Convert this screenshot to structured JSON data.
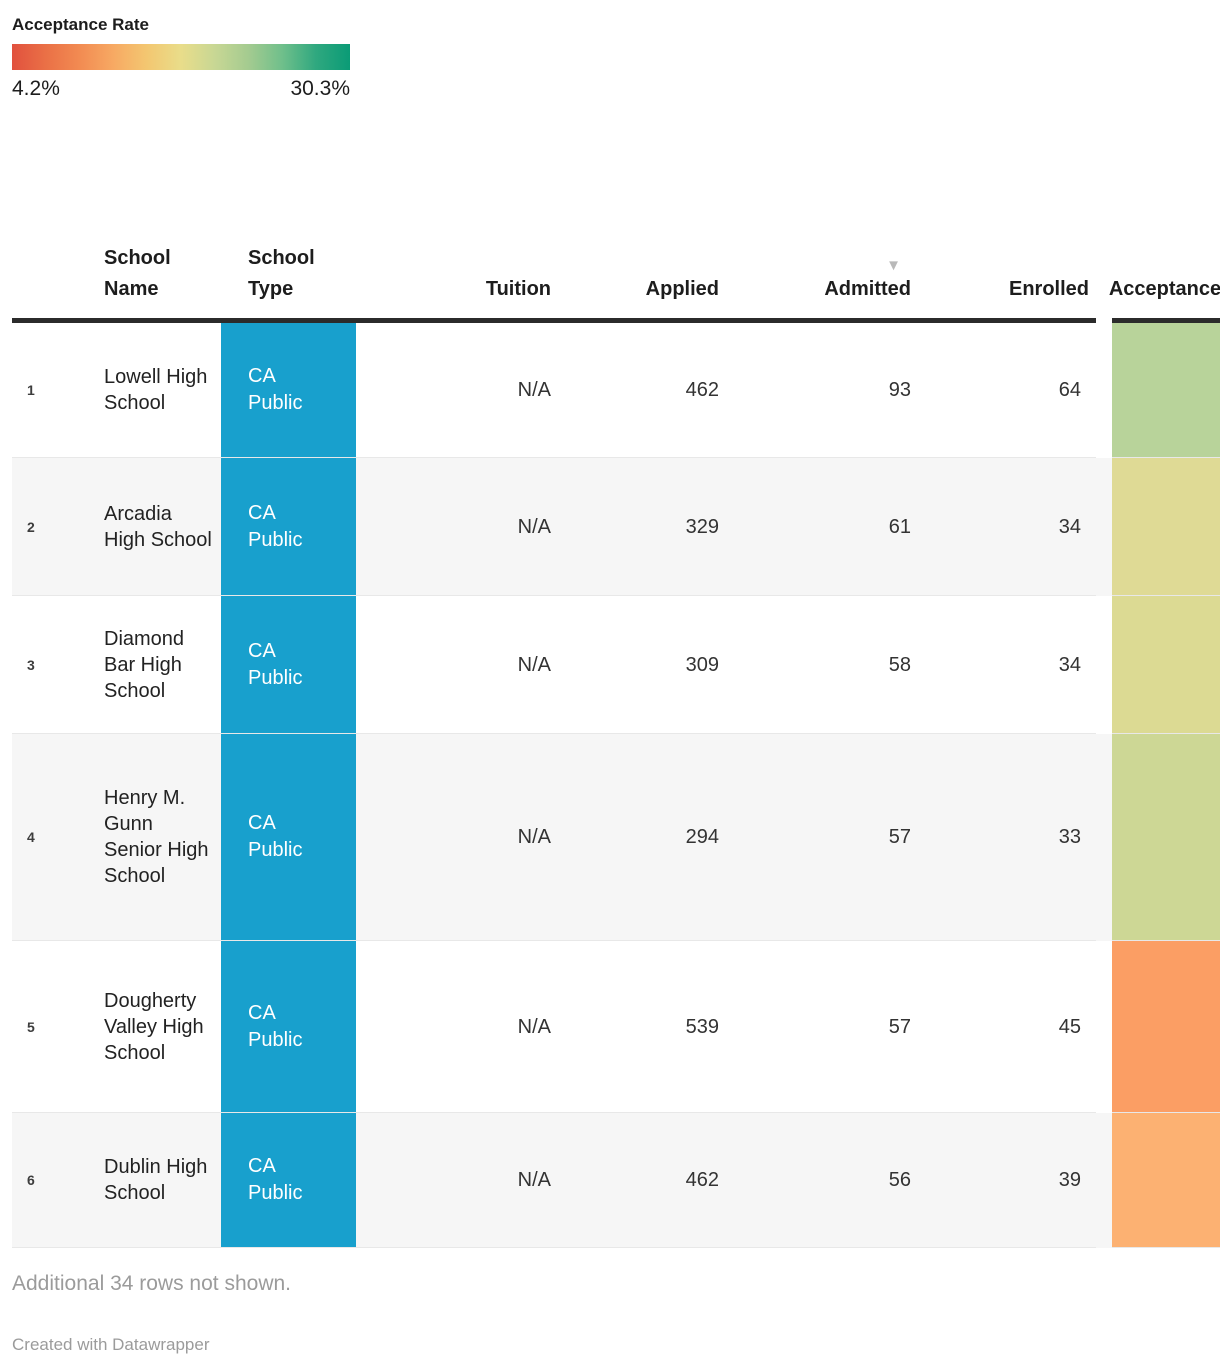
{
  "legend": {
    "title": "Acceptance Rate",
    "min_label": "4.2%",
    "max_label": "30.3%",
    "gradient_colors": [
      "#e1513e",
      "#ea7046",
      "#f28b52",
      "#f7a963",
      "#f3c771",
      "#e9dd8a",
      "#c8d794",
      "#a4cb90",
      "#6fbf8b",
      "#2fa87f",
      "#0a9b76"
    ]
  },
  "table": {
    "columns": {
      "name": "School Name",
      "type": "School Type",
      "tuition": "Tuition",
      "applied": "Applied",
      "admitted": "Admitted",
      "enrolled": "Enrolled",
      "acceptance": "Acceptance Rate"
    },
    "sort_icon": "▼",
    "sorted_column": "Admitted",
    "type_cell_color": "#18a0cd",
    "rows": [
      {
        "num": "1",
        "name": "Lowell High School",
        "type": "CA Public",
        "tuition": "N/A",
        "applied": "462",
        "admitted": "93",
        "enrolled": "64",
        "acceptance_color": "#b8d39a"
      },
      {
        "num": "2",
        "name": "Arcadia High School",
        "type": "CA Public",
        "tuition": "N/A",
        "applied": "329",
        "admitted": "61",
        "enrolled": "34",
        "acceptance_color": "#dfda95"
      },
      {
        "num": "3",
        "name": "Diamond Bar High School",
        "type": "CA Public",
        "tuition": "N/A",
        "applied": "309",
        "admitted": "58",
        "enrolled": "34",
        "acceptance_color": "#dcda93"
      },
      {
        "num": "4",
        "name": "Henry M. Gunn Senior High School",
        "type": "CA Public",
        "tuition": "N/A",
        "applied": "294",
        "admitted": "57",
        "enrolled": "33",
        "acceptance_color": "#cdd795"
      },
      {
        "num": "5",
        "name": "Dougherty Valley High School",
        "type": "CA Public",
        "tuition": "N/A",
        "applied": "539",
        "admitted": "57",
        "enrolled": "45",
        "acceptance_color": "#fb9e64"
      },
      {
        "num": "6",
        "name": "Dublin High School",
        "type": "CA Public",
        "tuition": "N/A",
        "applied": "462",
        "admitted": "56",
        "enrolled": "39",
        "acceptance_color": "#fcb172"
      }
    ]
  },
  "footer": {
    "note": "Additional 34 rows not shown.",
    "credit": "Created with Datawrapper"
  },
  "chart_data": {
    "type": "table",
    "title": "Acceptance Rate",
    "color_scale": {
      "label": "Acceptance Rate",
      "min": 4.2,
      "max": 30.3,
      "unit": "%",
      "scale": "red-yellow-green gradient"
    },
    "columns": [
      "School Name",
      "School Type",
      "Tuition",
      "Applied",
      "Admitted",
      "Enrolled",
      "Acceptance Rate"
    ],
    "sorted_by": {
      "column": "Admitted",
      "direction": "descending"
    },
    "rows": [
      {
        "rank": 1,
        "school_name": "Lowell High School",
        "school_type": "CA Public",
        "tuition": "N/A",
        "applied": 462,
        "admitted": 93,
        "enrolled": 64,
        "acceptance_rate_value_visible": false,
        "acceptance_cell_color": "#b8d39a"
      },
      {
        "rank": 2,
        "school_name": "Arcadia High School",
        "school_type": "CA Public",
        "tuition": "N/A",
        "applied": 329,
        "admitted": 61,
        "enrolled": 34,
        "acceptance_rate_value_visible": false,
        "acceptance_cell_color": "#dfda95"
      },
      {
        "rank": 3,
        "school_name": "Diamond Bar High School",
        "school_type": "CA Public",
        "tuition": "N/A",
        "applied": 309,
        "admitted": 58,
        "enrolled": 34,
        "acceptance_rate_value_visible": false,
        "acceptance_cell_color": "#dcda93"
      },
      {
        "rank": 4,
        "school_name": "Henry M. Gunn Senior High School",
        "school_type": "CA Public",
        "tuition": "N/A",
        "applied": 294,
        "admitted": 57,
        "enrolled": 33,
        "acceptance_rate_value_visible": false,
        "acceptance_cell_color": "#cdd795"
      },
      {
        "rank": 5,
        "school_name": "Dougherty Valley High School",
        "school_type": "CA Public",
        "tuition": "N/A",
        "applied": 539,
        "admitted": 57,
        "enrolled": 45,
        "acceptance_rate_value_visible": false,
        "acceptance_cell_color": "#fb9e64"
      },
      {
        "rank": 6,
        "school_name": "Dublin High School",
        "school_type": "CA Public",
        "tuition": "N/A",
        "applied": 462,
        "admitted": 56,
        "enrolled": 39,
        "acceptance_rate_value_visible": false,
        "acceptance_cell_color": "#fcb172"
      }
    ],
    "note": "Additional 34 rows not shown.",
    "layout_hints": {
      "legend_position": "top-left",
      "heatmap_column": "Acceptance Rate",
      "row_striping": true,
      "last_column_clipped_by_viewport": true
    }
  }
}
